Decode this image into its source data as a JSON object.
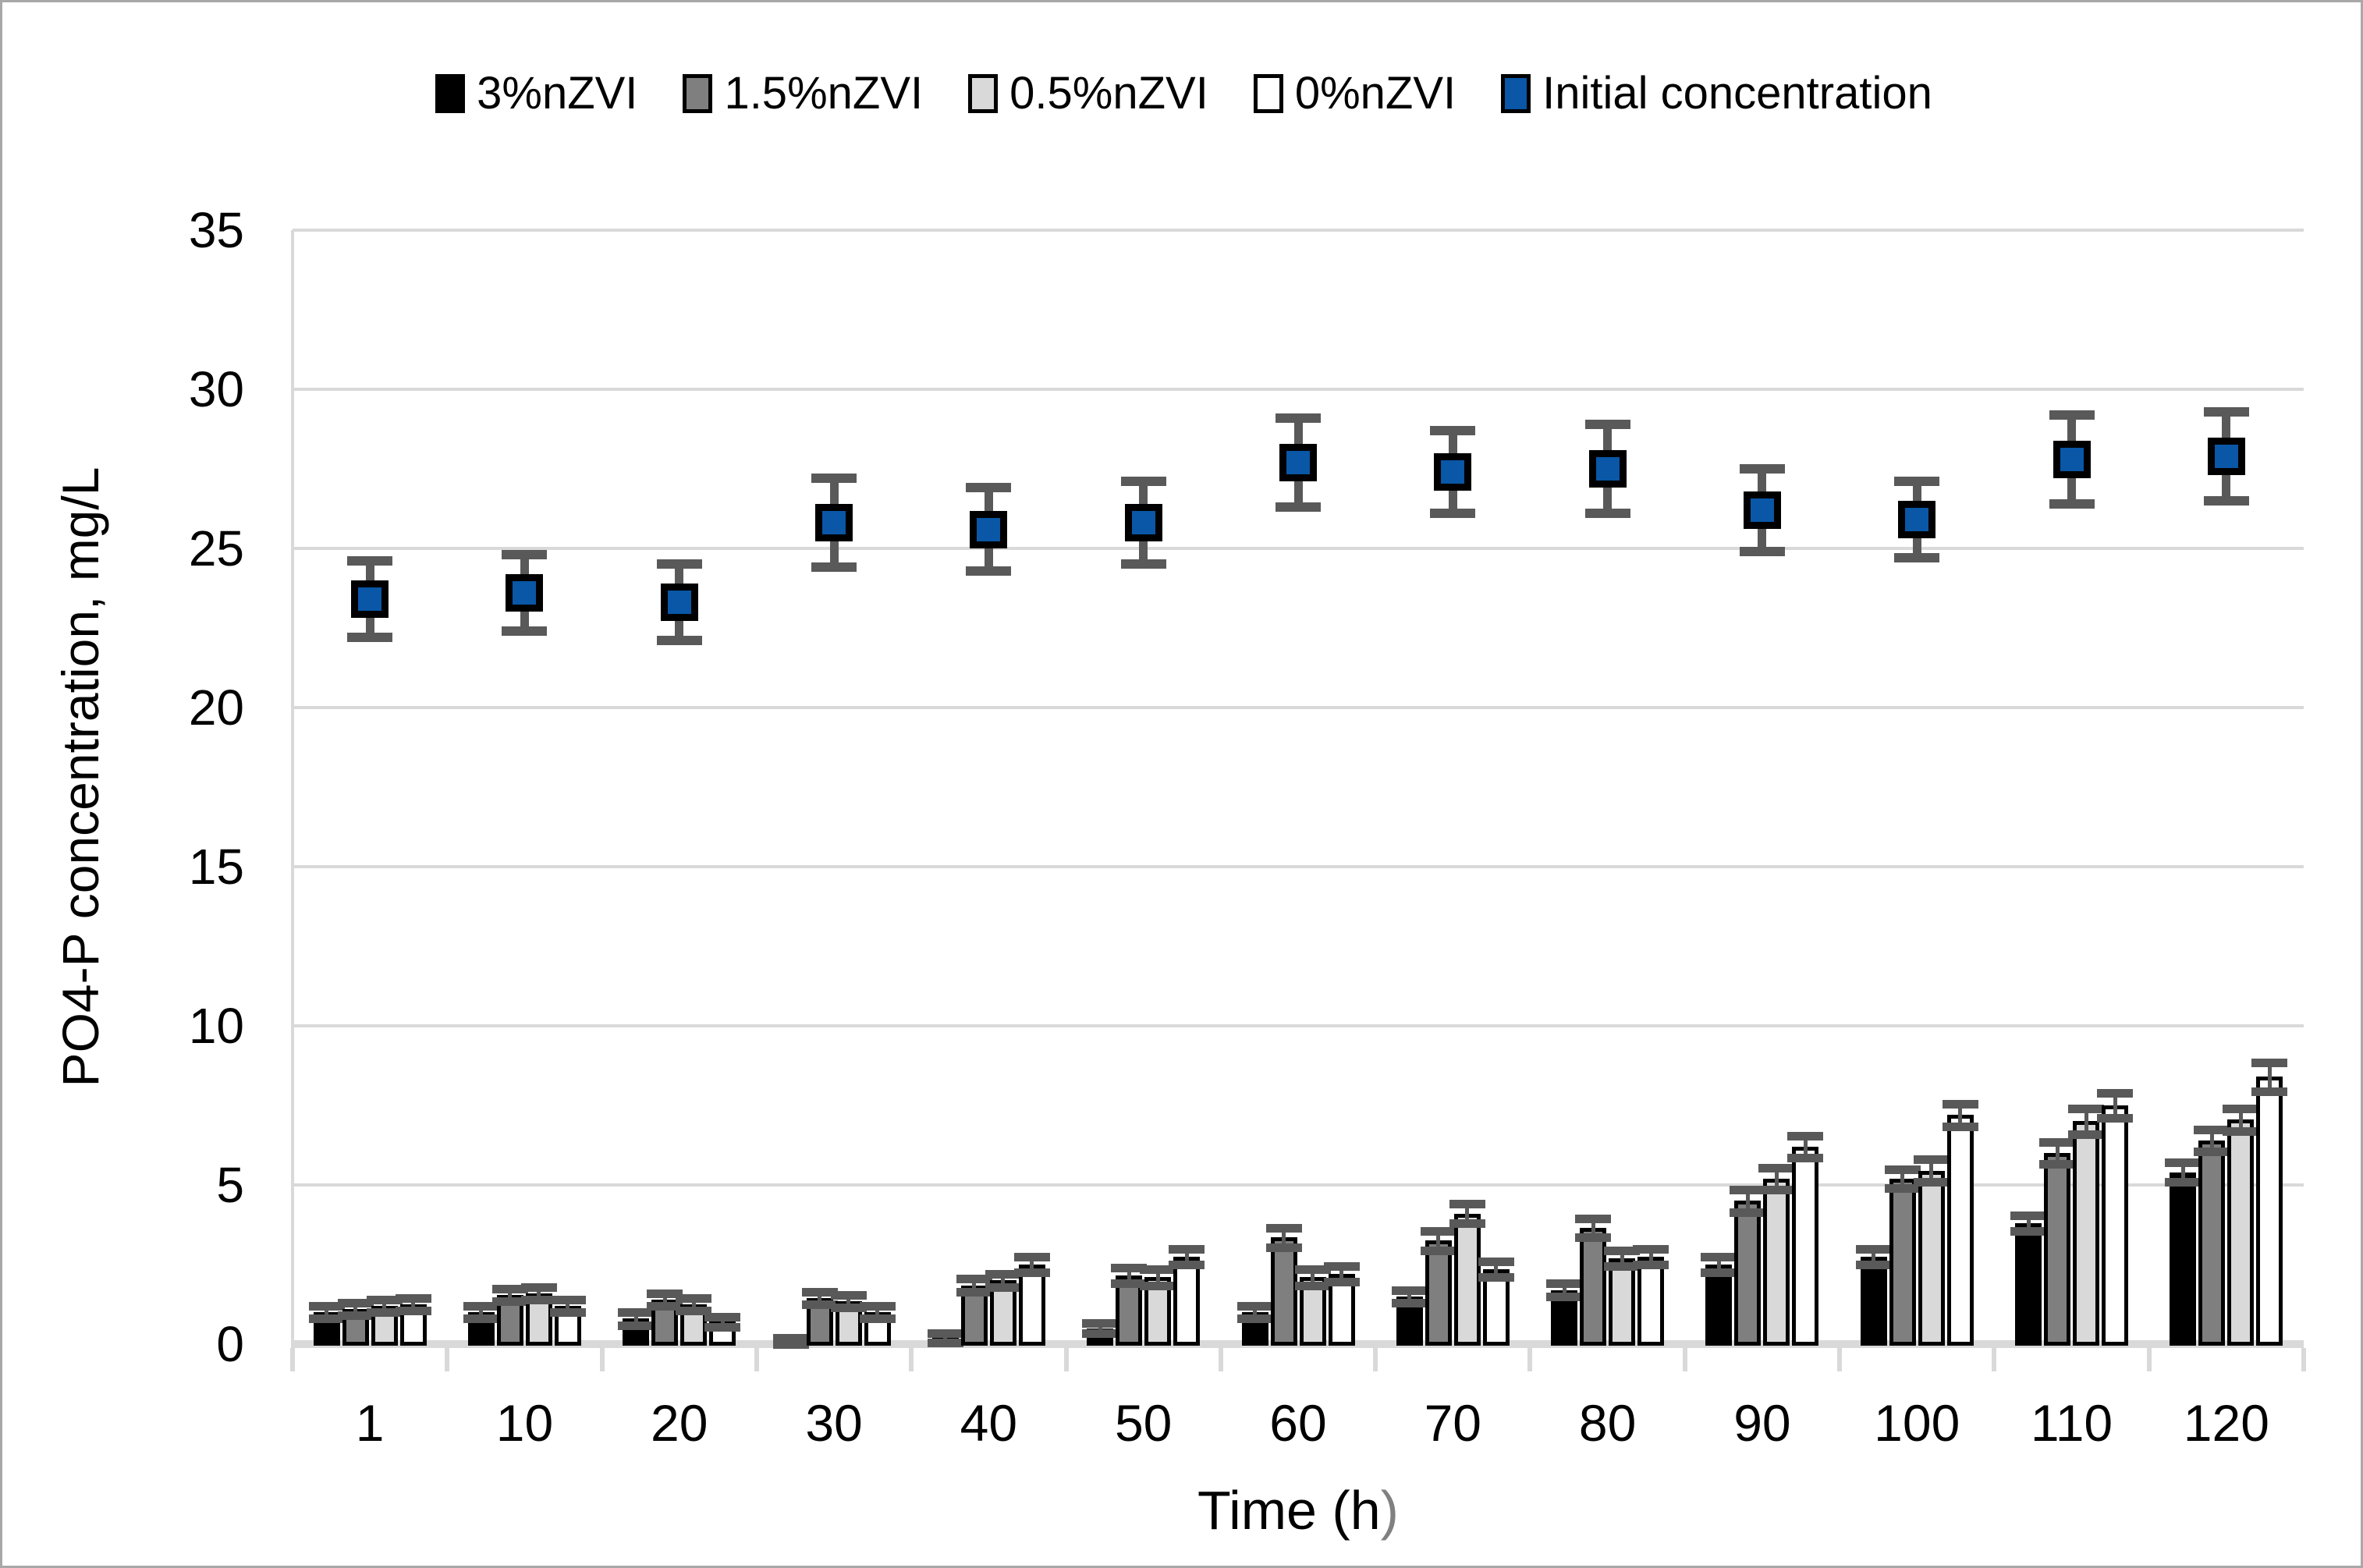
{
  "chart_data": {
    "type": "combo-bar-scatter",
    "title": "",
    "categories": [
      1,
      10,
      20,
      30,
      40,
      50,
      60,
      70,
      80,
      90,
      100,
      110,
      120
    ],
    "bar_series": [
      {
        "name": "3%nZVI",
        "fill": "#000000",
        "values": [
          1.0,
          1.0,
          0.8,
          0.1,
          0.2,
          0.5,
          1.0,
          1.5,
          1.7,
          2.5,
          2.75,
          3.8,
          5.4
        ],
        "errors": [
          0.2,
          0.2,
          0.2,
          0.1,
          0.15,
          0.15,
          0.2,
          0.2,
          0.2,
          0.25,
          0.25,
          0.25,
          0.3
        ]
      },
      {
        "name": "1.5%nZVI",
        "fill": "#7f7f7f",
        "values": [
          1.1,
          1.55,
          1.4,
          1.45,
          1.85,
          2.15,
          3.35,
          3.25,
          3.65,
          4.5,
          5.2,
          6.0,
          6.4
        ],
        "errors": [
          0.2,
          0.2,
          0.2,
          0.2,
          0.2,
          0.25,
          0.3,
          0.3,
          0.3,
          0.35,
          0.3,
          0.35,
          0.35
        ]
      },
      {
        "name": "0.5%nZVI",
        "fill": "#d9d9d9",
        "values": [
          1.2,
          1.6,
          1.25,
          1.35,
          2.0,
          2.1,
          2.1,
          4.1,
          2.7,
          5.2,
          5.45,
          7.0,
          7.05
        ],
        "errors": [
          0.2,
          0.2,
          0.2,
          0.2,
          0.2,
          0.25,
          0.25,
          0.3,
          0.25,
          0.35,
          0.35,
          0.4,
          0.35
        ]
      },
      {
        "name": "0%nZVI",
        "fill": "#ffffff",
        "values": [
          1.25,
          1.2,
          0.7,
          1.0,
          2.5,
          2.75,
          2.2,
          2.35,
          2.75,
          6.2,
          7.2,
          7.5,
          8.4
        ],
        "errors": [
          0.2,
          0.2,
          0.15,
          0.2,
          0.25,
          0.25,
          0.25,
          0.25,
          0.25,
          0.35,
          0.35,
          0.4,
          0.45
        ]
      }
    ],
    "scatter_series": {
      "name": "Initial concentration",
      "fill": "#0957a6",
      "marker": "square",
      "values": [
        23.4,
        23.6,
        23.3,
        25.8,
        25.6,
        25.8,
        27.7,
        27.4,
        27.5,
        26.2,
        25.9,
        27.8,
        27.9
      ],
      "errors": [
        1.2,
        1.2,
        1.2,
        1.4,
        1.3,
        1.3,
        1.4,
        1.3,
        1.4,
        1.3,
        1.2,
        1.4,
        1.4
      ]
    },
    "xlabel": "Time (h)",
    "ylabel": "PO4-P concentration, mg/L",
    "ylim": [
      0,
      35
    ],
    "ytick_step": 5,
    "grid": "horizontal",
    "legend_position": "top"
  },
  "axis": {
    "y_ticks": [
      "0",
      "5",
      "10",
      "15",
      "20",
      "25",
      "30",
      "35"
    ],
    "x_ticks": [
      "1",
      "10",
      "20",
      "30",
      "40",
      "50",
      "60",
      "70",
      "80",
      "90",
      "100",
      "110",
      "120"
    ],
    "x_title_main": "Time (h",
    "x_title_paren": ")"
  },
  "colors": {
    "error_bar": "#595959",
    "gridline": "#d9d9d9",
    "axis_line": "#d9d9d9",
    "frame_border": "#a8a8a8",
    "marker_blue": "#0957a6",
    "text": "#000000"
  }
}
